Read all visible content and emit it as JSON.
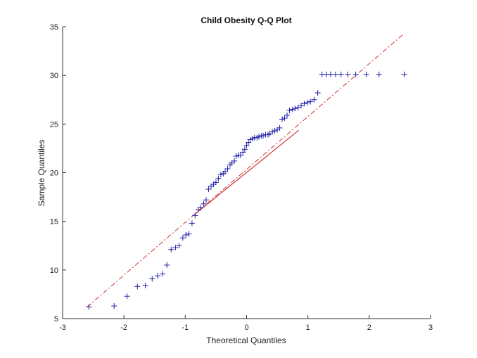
{
  "chart_data": {
    "type": "scatter",
    "title": "Child Obesity Q-Q Plot",
    "xlabel": "Theoretical Quantiles",
    "ylabel": "Sample Quantiles",
    "xlim": [
      -3,
      3
    ],
    "ylim": [
      5,
      35
    ],
    "xticks": [
      -3,
      -2,
      -1,
      0,
      1,
      2,
      3
    ],
    "yticks": [
      5,
      10,
      15,
      20,
      25,
      30,
      35
    ],
    "grid": false,
    "marker": "+",
    "colors": {
      "points": "#1f1fa8",
      "reference_line": "#d03030"
    },
    "reference_line": {
      "solid_segment": {
        "x": [
          -0.84,
          0.85
        ],
        "y": [
          15.75,
          24.35
        ]
      },
      "dashdot_extension": {
        "x": [
          -2.6,
          2.57
        ],
        "y": [
          6.2,
          34.3
        ]
      }
    },
    "points": {
      "x": [
        -2.57,
        -2.16,
        -1.95,
        -1.78,
        -1.65,
        -1.54,
        -1.45,
        -1.37,
        -1.3,
        -1.23,
        -1.16,
        -1.1,
        -1.04,
        -0.99,
        -0.94,
        -0.89,
        -0.84,
        -0.79,
        -0.75,
        -0.7,
        -0.66,
        -0.62,
        -0.58,
        -0.54,
        -0.5,
        -0.46,
        -0.42,
        -0.38,
        -0.35,
        -0.31,
        -0.27,
        -0.24,
        -0.2,
        -0.17,
        -0.13,
        -0.1,
        -0.06,
        -0.03,
        0.0,
        0.03,
        0.06,
        0.1,
        0.13,
        0.17,
        0.2,
        0.24,
        0.27,
        0.31,
        0.35,
        0.38,
        0.42,
        0.46,
        0.5,
        0.54,
        0.58,
        0.62,
        0.66,
        0.7,
        0.75,
        0.79,
        0.84,
        0.89,
        0.94,
        0.99,
        1.04,
        1.1,
        1.16,
        1.23,
        1.3,
        1.37,
        1.45,
        1.54,
        1.65,
        1.78,
        1.95,
        2.16,
        2.57
      ],
      "y": [
        6.2,
        6.3,
        7.3,
        8.3,
        8.4,
        9.1,
        9.4,
        9.6,
        10.5,
        12.1,
        12.3,
        12.5,
        13.3,
        13.6,
        13.7,
        14.8,
        15.6,
        16.2,
        16.4,
        16.8,
        17.2,
        18.3,
        18.6,
        18.8,
        19.0,
        19.4,
        19.8,
        19.9,
        20.1,
        20.4,
        20.8,
        21.0,
        21.2,
        21.7,
        21.8,
        21.8,
        22.1,
        22.4,
        22.8,
        23.1,
        23.4,
        23.5,
        23.6,
        23.6,
        23.7,
        23.8,
        23.8,
        23.9,
        23.9,
        24.0,
        24.2,
        24.3,
        24.4,
        24.6,
        25.5,
        25.6,
        25.9,
        26.4,
        26.5,
        26.6,
        26.7,
        26.9,
        27.1,
        27.2,
        27.3,
        27.5,
        28.2,
        30.1,
        30.1,
        30.1,
        30.1,
        30.1,
        30.1,
        30.1,
        30.1,
        30.1,
        30.1
      ]
    }
  }
}
